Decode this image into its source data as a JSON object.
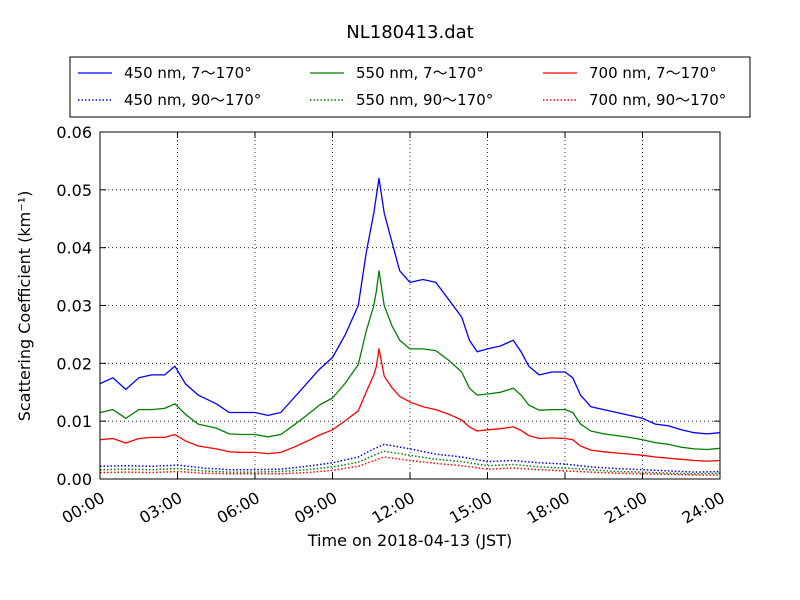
{
  "chart_data": {
    "type": "line",
    "title": "NL180413.dat",
    "xlabel": "Time on 2018-04-13 (JST)",
    "ylabel": "Scattering Coefficient (km⁻¹)",
    "x_unit": "hours JST on 2018-04-13",
    "xlim": [
      0,
      24
    ],
    "ylim": [
      0,
      0.06
    ],
    "x_ticks": [
      0,
      3,
      6,
      9,
      12,
      15,
      18,
      21,
      24
    ],
    "x_tick_labels": [
      "00:00",
      "03:00",
      "06:00",
      "09:00",
      "12:00",
      "15:00",
      "18:00",
      "21:00",
      "24:00"
    ],
    "y_ticks": [
      0,
      0.01,
      0.02,
      0.03,
      0.04,
      0.05,
      0.06
    ],
    "y_tick_labels": [
      "0.00",
      "0.01",
      "0.02",
      "0.03",
      "0.04",
      "0.05",
      "0.06"
    ],
    "grid": true,
    "legend_position": "top, above plot area",
    "series": [
      {
        "name": "450 nm, 7～170°",
        "color": "#0000ff",
        "style": "solid",
        "x": [
          0,
          0.5,
          1,
          1.5,
          2,
          2.5,
          2.9,
          3.3,
          3.8,
          4.5,
          5,
          5.5,
          6,
          6.5,
          7,
          7.5,
          8,
          8.5,
          9,
          9.5,
          10,
          10.3,
          10.6,
          10.7,
          10.8,
          11,
          11.3,
          11.6,
          12,
          12.5,
          13,
          13.5,
          14,
          14.3,
          14.6,
          15,
          15.5,
          16,
          16.3,
          16.6,
          17,
          17.5,
          18,
          18.3,
          18.6,
          19,
          19.5,
          20,
          20.5,
          21,
          21.5,
          22,
          22.5,
          23,
          23.5,
          24
        ],
        "y": [
          0.0165,
          0.0175,
          0.0155,
          0.0175,
          0.018,
          0.018,
          0.0195,
          0.0165,
          0.0145,
          0.013,
          0.0115,
          0.0115,
          0.0115,
          0.011,
          0.0115,
          0.014,
          0.0165,
          0.019,
          0.021,
          0.025,
          0.03,
          0.039,
          0.046,
          0.049,
          0.052,
          0.046,
          0.041,
          0.036,
          0.034,
          0.0345,
          0.034,
          0.031,
          0.028,
          0.024,
          0.022,
          0.0225,
          0.023,
          0.024,
          0.022,
          0.0195,
          0.018,
          0.0185,
          0.0185,
          0.0175,
          0.0145,
          0.0125,
          0.012,
          0.0115,
          0.011,
          0.0105,
          0.0095,
          0.0092,
          0.0085,
          0.008,
          0.0078,
          0.008
        ]
      },
      {
        "name": "550 nm, 7～170°",
        "color": "#008000",
        "style": "solid",
        "x": [
          0,
          0.5,
          1,
          1.5,
          2,
          2.5,
          2.9,
          3.3,
          3.8,
          4.5,
          5,
          5.5,
          6,
          6.5,
          7,
          7.5,
          8,
          8.5,
          9,
          9.5,
          10,
          10.3,
          10.6,
          10.7,
          10.8,
          11,
          11.3,
          11.6,
          12,
          12.5,
          13,
          13.5,
          14,
          14.3,
          14.6,
          15,
          15.5,
          16,
          16.3,
          16.6,
          17,
          17.5,
          18,
          18.3,
          18.6,
          19,
          19.5,
          20,
          20.5,
          21,
          21.5,
          22,
          22.5,
          23,
          23.5,
          24
        ],
        "y": [
          0.0115,
          0.012,
          0.0105,
          0.012,
          0.012,
          0.0122,
          0.013,
          0.0112,
          0.0095,
          0.0088,
          0.0078,
          0.0077,
          0.0077,
          0.0073,
          0.0077,
          0.0093,
          0.011,
          0.0128,
          0.014,
          0.0166,
          0.0198,
          0.0255,
          0.03,
          0.0325,
          0.036,
          0.03,
          0.0265,
          0.024,
          0.0225,
          0.0225,
          0.0222,
          0.0205,
          0.0185,
          0.0157,
          0.0145,
          0.0147,
          0.015,
          0.0157,
          0.0145,
          0.0128,
          0.0119,
          0.012,
          0.012,
          0.0115,
          0.0095,
          0.0083,
          0.0078,
          0.0075,
          0.0072,
          0.0068,
          0.0063,
          0.006,
          0.0055,
          0.0052,
          0.0051,
          0.0053
        ]
      },
      {
        "name": "700 nm, 7～170°",
        "color": "#ff0000",
        "style": "solid",
        "x": [
          0,
          0.5,
          1,
          1.5,
          2,
          2.5,
          2.9,
          3.3,
          3.8,
          4.5,
          5,
          5.5,
          6,
          6.5,
          7,
          7.5,
          8,
          8.5,
          9,
          9.5,
          10,
          10.3,
          10.6,
          10.7,
          10.8,
          11,
          11.3,
          11.6,
          12,
          12.5,
          13,
          13.5,
          14,
          14.3,
          14.6,
          15,
          15.5,
          16,
          16.3,
          16.6,
          17,
          17.5,
          18,
          18.3,
          18.6,
          19,
          19.5,
          20,
          20.5,
          21,
          21.5,
          22,
          22.5,
          23,
          23.5,
          24
        ],
        "y": [
          0.0068,
          0.007,
          0.0062,
          0.007,
          0.0072,
          0.0072,
          0.0077,
          0.0066,
          0.0057,
          0.0052,
          0.0047,
          0.0046,
          0.0046,
          0.0044,
          0.0046,
          0.0055,
          0.0065,
          0.0076,
          0.0085,
          0.0101,
          0.0118,
          0.015,
          0.018,
          0.0195,
          0.0225,
          0.0178,
          0.0158,
          0.0143,
          0.0133,
          0.0125,
          0.012,
          0.0112,
          0.0102,
          0.009,
          0.0083,
          0.0085,
          0.0087,
          0.009,
          0.0084,
          0.0075,
          0.007,
          0.0071,
          0.007,
          0.0068,
          0.0057,
          0.005,
          0.0047,
          0.0045,
          0.0043,
          0.0041,
          0.0038,
          0.0036,
          0.0034,
          0.0032,
          0.0031,
          0.0032
        ]
      },
      {
        "name": "450 nm, 90～170°",
        "color": "#0000ff",
        "style": "dotted",
        "x": [
          0,
          1,
          2,
          3,
          4,
          5,
          6,
          7,
          8,
          9,
          10,
          10.5,
          11,
          12,
          13,
          14,
          15,
          16,
          17,
          18,
          19,
          20,
          21,
          22,
          23,
          24
        ],
        "y": [
          0.0022,
          0.0023,
          0.0022,
          0.0024,
          0.0019,
          0.0016,
          0.0016,
          0.0017,
          0.0022,
          0.0028,
          0.0038,
          0.005,
          0.006,
          0.0052,
          0.0043,
          0.0038,
          0.003,
          0.0032,
          0.0028,
          0.0026,
          0.0021,
          0.0018,
          0.0016,
          0.0014,
          0.0012,
          0.0013
        ]
      },
      {
        "name": "550 nm, 90～170°",
        "color": "#008000",
        "style": "dotted",
        "x": [
          0,
          1,
          2,
          3,
          4,
          5,
          6,
          7,
          8,
          9,
          10,
          10.5,
          11,
          12,
          13,
          14,
          15,
          16,
          17,
          18,
          19,
          20,
          21,
          22,
          23,
          24
        ],
        "y": [
          0.0016,
          0.0017,
          0.0016,
          0.0018,
          0.0014,
          0.0012,
          0.0012,
          0.0013,
          0.0016,
          0.0021,
          0.0029,
          0.0039,
          0.0048,
          0.0041,
          0.0034,
          0.003,
          0.0023,
          0.0025,
          0.0021,
          0.0019,
          0.0016,
          0.0013,
          0.0012,
          0.001,
          0.0009,
          0.001
        ]
      },
      {
        "name": "700 nm, 90～170°",
        "color": "#ff0000",
        "style": "dotted",
        "x": [
          0,
          1,
          2,
          3,
          4,
          5,
          6,
          7,
          8,
          9,
          10,
          10.5,
          11,
          12,
          13,
          14,
          15,
          16,
          17,
          18,
          19,
          20,
          21,
          22,
          23,
          24
        ],
        "y": [
          0.0011,
          0.0012,
          0.0011,
          0.0013,
          0.001,
          0.0009,
          0.0009,
          0.0009,
          0.0011,
          0.0015,
          0.0022,
          0.003,
          0.0038,
          0.0032,
          0.0027,
          0.0023,
          0.0017,
          0.0019,
          0.0016,
          0.0014,
          0.0012,
          0.001,
          0.0009,
          0.0008,
          0.0007,
          0.0007
        ]
      }
    ]
  }
}
